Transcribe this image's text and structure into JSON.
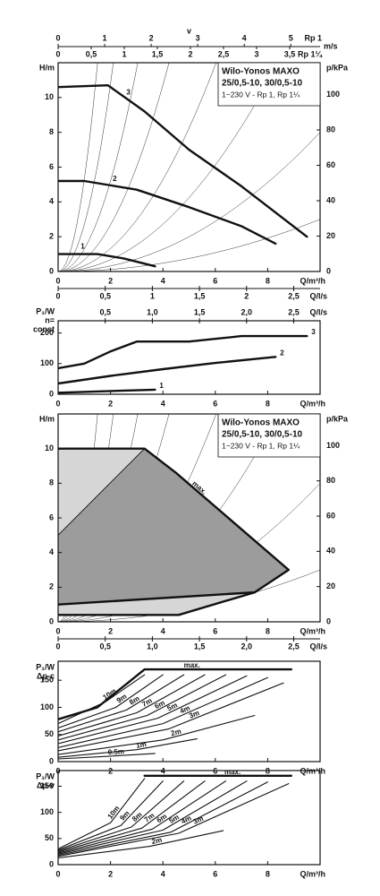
{
  "chart_data": [
    {
      "type": "line",
      "ylabel": [
        "H/m"
      ],
      "y2label": "p/kPa",
      "xlabel": "Q/m³/h",
      "info": [
        "Wilo-Yonos MAXO",
        "25/0,5-10, 30/0,5-10",
        "1~230 V - Rp 1, Rp 1¼"
      ],
      "xlim": [
        0,
        10
      ],
      "xticks": [
        0,
        2,
        4,
        6,
        8
      ],
      "ylim": [
        0,
        12
      ],
      "yticks": [
        0,
        2,
        4,
        6,
        8,
        10
      ],
      "y2lim": [
        0,
        118
      ],
      "y2ticks": [
        0,
        20,
        40,
        60,
        80,
        100
      ],
      "x2label": "Q/l/s",
      "x2lim": [
        0,
        2.78
      ],
      "x2ticks": [
        0,
        {
          "value": 0.5,
          "label": "0,5"
        },
        1,
        {
          "value": 1.5,
          "label": "1,5"
        },
        2,
        {
          "value": 2.5,
          "label": "2,5"
        }
      ],
      "v_axis": {
        "label": "v",
        "unit": "m/s",
        "scales": [
          {
            "name": "Rp 1",
            "xlim": [
              0,
              5.63
            ],
            "xticks": [
              0,
              1,
              2,
              3,
              4,
              5
            ]
          },
          {
            "name": "Rp 1¼",
            "xlim": [
              0,
              3.96
            ],
            "xticks": [
              0,
              {
                "value": 0.5,
                "label": "0,5"
              },
              1,
              {
                "value": 1.5,
                "label": "1,5"
              },
              2,
              {
                "value": 2.5,
                "label": "2,5"
              },
              3,
              {
                "value": 3.5,
                "label": "3,5"
              }
            ]
          }
        ]
      },
      "series": [
        {
          "name": "3",
          "color": "#111111",
          "x": [
            0,
            1.9,
            3.3,
            5,
            7,
            9.5
          ],
          "y": [
            10.6,
            10.7,
            9.2,
            7.0,
            4.9,
            2.0
          ]
        },
        {
          "name": "2",
          "color": "#111111",
          "x": [
            0,
            1,
            3,
            5,
            7,
            8.3
          ],
          "y": [
            5.2,
            5.2,
            4.7,
            3.7,
            2.6,
            1.6
          ]
        },
        {
          "name": "1",
          "color": "#111111",
          "x": [
            0,
            1.5,
            2.5,
            3.7
          ],
          "y": [
            1.0,
            1.0,
            0.75,
            0.3
          ]
        }
      ]
    },
    {
      "type": "line",
      "ylabel": [
        "P₁/W",
        "n=",
        "const"
      ],
      "xlabel": "Q/m³/h",
      "xlim": [
        0,
        10
      ],
      "xticks": [
        0,
        2,
        4,
        6,
        8
      ],
      "ylim": [
        0,
        240
      ],
      "yticks": [
        0,
        100,
        200
      ],
      "x2label": "Q/l/s",
      "x2lim": [
        0,
        2.78
      ],
      "x2ticks": [
        {
          "value": 0.5,
          "label": "0,5"
        },
        {
          "value": 1,
          "label": "1,0"
        },
        {
          "value": 1.5,
          "label": "1,5"
        },
        {
          "value": 2,
          "label": "2,0"
        },
        {
          "value": 2.5,
          "label": "2,5"
        }
      ],
      "series": [
        {
          "name": "3",
          "color": "#111111",
          "x": [
            0,
            1,
            2,
            3,
            5,
            7,
            9.5
          ],
          "y": [
            85,
            100,
            140,
            172,
            172,
            190,
            190
          ]
        },
        {
          "name": "2",
          "color": "#111111",
          "x": [
            0,
            2,
            4,
            6,
            8.3
          ],
          "y": [
            35,
            60,
            82,
            102,
            122
          ]
        },
        {
          "name": "1",
          "color": "#111111",
          "x": [
            0,
            3.7
          ],
          "y": [
            5,
            15
          ]
        }
      ]
    },
    {
      "type": "region",
      "ylabel": [
        "H/m"
      ],
      "y2label": "p/kPa",
      "xlabel": "Q/m³/h",
      "info": [
        "Wilo-Yonos MAXO",
        "25/0,5-10, 30/0,5-10",
        "1~230 V - Rp 1, Rp 1¼"
      ],
      "xlim": [
        0,
        10
      ],
      "xticks": [
        0,
        2,
        4,
        6,
        8
      ],
      "ylim": [
        0,
        12
      ],
      "yticks": [
        0,
        2,
        4,
        6,
        8,
        10
      ],
      "y2lim": [
        0,
        118
      ],
      "y2ticks": [
        0,
        20,
        40,
        60,
        80,
        100
      ],
      "x2label": "Q/l/s",
      "x2lim": [
        0,
        2.78
      ],
      "x2ticks": [
        0,
        {
          "value": 0.5,
          "label": "0,5"
        },
        {
          "value": 1,
          "label": "1,0"
        },
        {
          "value": 1.5,
          "label": "1,5"
        },
        {
          "value": 2,
          "label": "2,0"
        },
        {
          "value": 2.5,
          "label": "2,5"
        }
      ],
      "series": [
        {
          "color": "#d6d6d6",
          "fill": true,
          "x": [
            0,
            0,
            3.3
          ],
          "y": [
            5,
            10,
            10
          ]
        },
        {
          "color": "#9c9c9c",
          "fill": true,
          "x": [
            0,
            3.3,
            4.5,
            8.8,
            7.5,
            0
          ],
          "y": [
            5,
            10,
            8.6,
            3,
            1.7,
            1
          ]
        },
        {
          "color": "#d6d6d6",
          "fill": true,
          "x": [
            0,
            7.5,
            4.6,
            0
          ],
          "y": [
            1,
            1.7,
            0.4,
            0.4
          ]
        },
        {
          "name": "max.",
          "color": "#111111",
          "x": [
            0,
            3.3,
            4.5,
            8.8,
            7.5,
            0
          ],
          "y": [
            10,
            10,
            8.6,
            3,
            1.7,
            1
          ]
        },
        {
          "color": "#111111",
          "x": [
            0,
            4.6,
            7.5
          ],
          "y": [
            0.4,
            0.4,
            1.7
          ]
        }
      ]
    },
    {
      "type": "line",
      "ylabel": [
        "P₁/W",
        "Δp-c"
      ],
      "xlabel": "Q/m³/h",
      "xlim": [
        0,
        10
      ],
      "xticks": [
        0,
        2,
        4,
        6,
        8
      ],
      "ylim": [
        0,
        185
      ],
      "yticks": [
        0,
        50,
        100,
        150
      ],
      "series": [
        {
          "name": "max.",
          "color": "#111111",
          "x": [
            0,
            1.5,
            3.3,
            8.9
          ],
          "y": [
            78,
            100,
            170,
            170
          ]
        },
        {
          "name": "10m",
          "color": "#111111",
          "x": [
            0,
            1.8,
            3.3
          ],
          "y": [
            70,
            110,
            160
          ]
        },
        {
          "name": "9m",
          "color": "#111111",
          "x": [
            0,
            2.2,
            4.0
          ],
          "y": [
            62,
            100,
            160
          ]
        },
        {
          "name": "8m",
          "color": "#111111",
          "x": [
            0,
            2.6,
            4.8
          ],
          "y": [
            55,
            95,
            160
          ]
        },
        {
          "name": "7m",
          "color": "#111111",
          "x": [
            0,
            3,
            5.6
          ],
          "y": [
            47,
            90,
            160
          ]
        },
        {
          "name": "6m",
          "color": "#111111",
          "x": [
            0,
            3.4,
            6.4
          ],
          "y": [
            40,
            85,
            160
          ]
        },
        {
          "name": "5m",
          "color": "#111111",
          "x": [
            0,
            3.8,
            7.2
          ],
          "y": [
            33,
            80,
            158
          ]
        },
        {
          "name": "4m",
          "color": "#111111",
          "x": [
            0,
            4,
            8.0
          ],
          "y": [
            26,
            70,
            155
          ]
        },
        {
          "name": "3m",
          "color": "#111111",
          "x": [
            0,
            4.2,
            8.6
          ],
          "y": [
            20,
            60,
            145
          ]
        },
        {
          "name": "2m",
          "color": "#111111",
          "x": [
            0,
            4,
            7.5
          ],
          "y": [
            13,
            40,
            85
          ]
        },
        {
          "name": "1m",
          "color": "#111111",
          "x": [
            0,
            3,
            5.3
          ],
          "y": [
            8,
            22,
            42
          ]
        },
        {
          "name": "0.5m",
          "color": "#111111",
          "x": [
            0,
            2,
            3.7
          ],
          "y": [
            5,
            10,
            15
          ]
        }
      ]
    },
    {
      "type": "line",
      "ylabel": [
        "P₁/W",
        "Δp-v"
      ],
      "xlabel": "Q/m³/h",
      "xlim": [
        0,
        10
      ],
      "xticks": [
        0,
        2,
        4,
        6,
        8
      ],
      "ylim": [
        0,
        180
      ],
      "yticks": [
        0,
        50,
        100,
        150
      ],
      "series": [
        {
          "name": "max.",
          "color": "#111111",
          "x": [
            3.3,
            8.9
          ],
          "y": [
            170,
            170
          ]
        },
        {
          "name": "10m",
          "color": "#111111",
          "x": [
            0,
            2,
            3.3
          ],
          "y": [
            30,
            80,
            165
          ]
        },
        {
          "name": "9m",
          "color": "#111111",
          "x": [
            0,
            2.4,
            4.0
          ],
          "y": [
            28,
            75,
            160
          ]
        },
        {
          "name": "8m",
          "color": "#111111",
          "x": [
            0,
            2.8,
            4.8
          ],
          "y": [
            26,
            72,
            160
          ]
        },
        {
          "name": "7m",
          "color": "#111111",
          "x": [
            0,
            3.2,
            5.6
          ],
          "y": [
            24,
            70,
            160
          ]
        },
        {
          "name": "6m",
          "color": "#111111",
          "x": [
            0,
            3.6,
            6.4
          ],
          "y": [
            22,
            68,
            160
          ]
        },
        {
          "name": "5m",
          "color": "#111111",
          "x": [
            0,
            4,
            7.2
          ],
          "y": [
            20,
            66,
            160
          ]
        },
        {
          "name": "4m",
          "color": "#111111",
          "x": [
            0,
            4.3,
            8.0
          ],
          "y": [
            18,
            62,
            158
          ]
        },
        {
          "name": "3m",
          "color": "#111111",
          "x": [
            0,
            4.6,
            8.8
          ],
          "y": [
            16,
            60,
            155
          ]
        },
        {
          "name": "2m",
          "color": "#111111",
          "x": [
            0,
            3.5,
            6.3
          ],
          "y": [
            13,
            35,
            65
          ]
        }
      ]
    }
  ]
}
